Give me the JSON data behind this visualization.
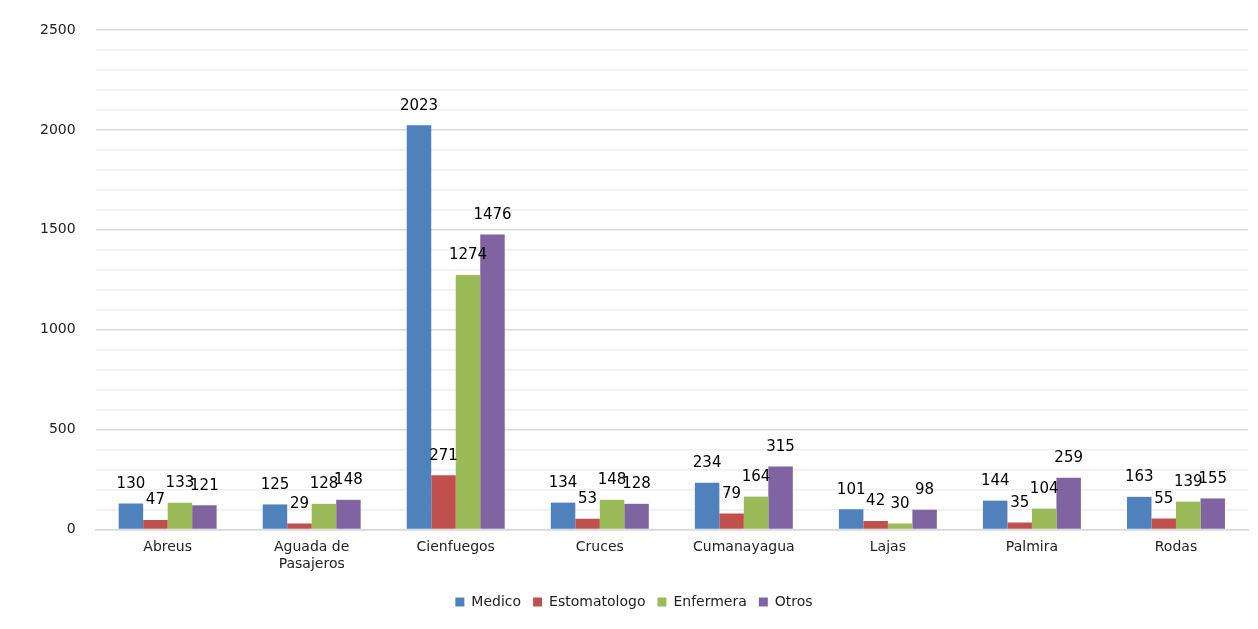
{
  "chart_data": {
    "type": "bar",
    "categories": [
      "Abreus",
      "Aguada de Pasajeros",
      "Cienfuegos",
      "Cruces",
      "Cumanayagua",
      "Lajas",
      "Palmira",
      "Rodas"
    ],
    "series": [
      {
        "name": "Medico",
        "color": "#4f81bd",
        "values": [
          130,
          125,
          2023,
          134,
          234,
          101,
          144,
          163
        ]
      },
      {
        "name": "Estomatologo",
        "color": "#c0504d",
        "values": [
          47,
          29,
          271,
          53,
          79,
          42,
          35,
          55
        ]
      },
      {
        "name": "Enfermera",
        "color": "#9bbb59",
        "values": [
          133,
          128,
          1274,
          148,
          164,
          30,
          104,
          139
        ]
      },
      {
        "name": "Otros",
        "color": "#8064a2",
        "values": [
          121,
          148,
          1476,
          128,
          315,
          98,
          259,
          155
        ]
      }
    ],
    "ylim": [
      0,
      2500
    ],
    "yticks": [
      0,
      {
        "value": 100,
        "label": null
      },
      {
        "value": 200,
        "label": null
      },
      {
        "value": 300,
        "label": null
      },
      {
        "value": 400,
        "label": null
      },
      500,
      {
        "value": 600,
        "label": null
      },
      {
        "value": 700,
        "label": null
      },
      {
        "value": 800,
        "label": null
      },
      {
        "value": 900,
        "label": null
      },
      1000,
      {
        "value": 1100,
        "label": null
      },
      {
        "value": 1200,
        "label": null
      },
      {
        "value": 1300,
        "label": null
      },
      {
        "value": 1400,
        "label": null
      },
      1500,
      {
        "value": 1600,
        "label": null
      },
      {
        "value": 1700,
        "label": null
      },
      {
        "value": 1800,
        "label": null
      },
      {
        "value": 1900,
        "label": null
      },
      2000,
      {
        "value": 2100,
        "label": null
      },
      {
        "value": 2200,
        "label": null
      },
      {
        "value": 2300,
        "label": null
      },
      {
        "value": 2400,
        "label": null
      },
      2500
    ],
    "grid": "y",
    "legend": "bottom",
    "data_labels": true
  }
}
